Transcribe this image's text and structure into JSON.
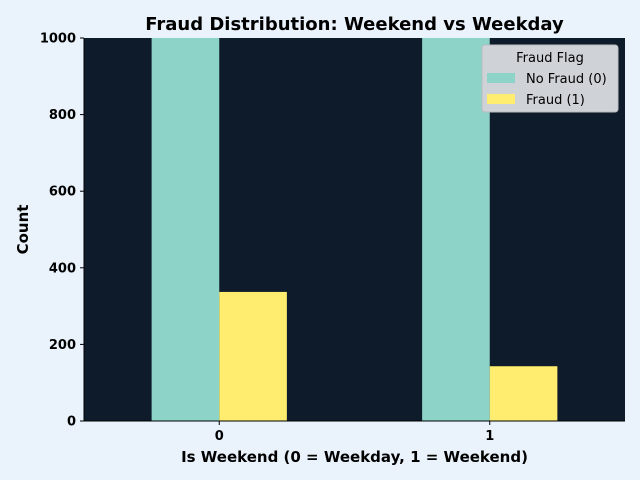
{
  "chart_data": {
    "type": "bar",
    "title": "Fraud Distribution: Weekend vs Weekday",
    "xlabel": "Is Weekend (0 = Weekday, 1 = Weekend)",
    "ylabel": "Count",
    "categories": [
      "0",
      "1"
    ],
    "ylim": [
      0,
      1000
    ],
    "yticks": [
      0,
      200,
      400,
      600,
      800,
      1000
    ],
    "grid": false,
    "legend": {
      "title": "Fraud Flag",
      "placement": "top-right"
    },
    "series": [
      {
        "name": "No Fraud (0)",
        "color": "#8dd3c7",
        "values": [
          1000,
          1000
        ]
      },
      {
        "name": "Fraud (1)",
        "color": "#ffed6f",
        "values": [
          337,
          143
        ]
      }
    ]
  },
  "colors": {
    "page_bg": "#eaf3fc",
    "plot_bg": "#0e1b2a",
    "legend_bg": "#cfd3d7"
  }
}
